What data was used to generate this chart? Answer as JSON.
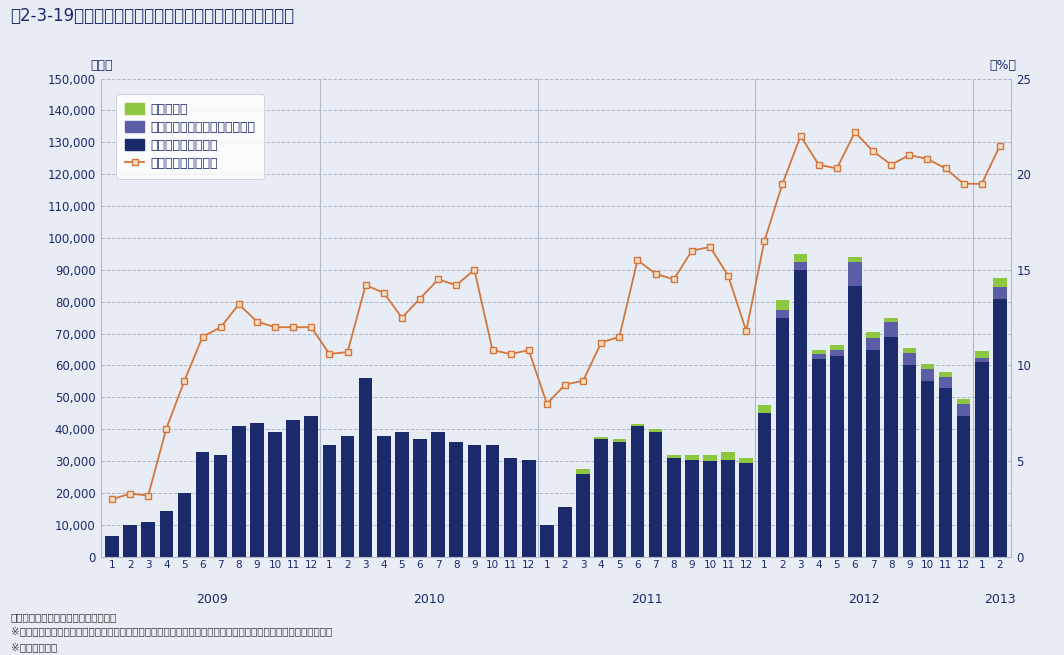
{
  "title": "図2-3-19　ハイブリッド自動車・電気自動車販売台数推移",
  "ylabel_left": "（台）",
  "ylabel_right": "（%）",
  "footnotes": [
    "※国産車のみ。",
    "※統計の制約上、プラグインハイブリッド自動車・ハイブリッド自動車・電気自動車の販売台数より割合を算出。",
    "資料：一般社団法人日本自動車工業会"
  ],
  "legend": [
    "電気自動車",
    "プラグインハイブリッド自動車",
    "ハイブリッド自動車",
    "次世代自動車の割合"
  ],
  "colors": {
    "ev": "#8DC63F",
    "phev": "#5B5EA6",
    "hv": "#1B2A6B",
    "line": "#D4763B",
    "background": "#E8ECF5",
    "grid": "#B0B8CC"
  },
  "year_labels": [
    "2009",
    "2010",
    "2011",
    "2012",
    "2013"
  ],
  "month_labels": [
    "1",
    "2",
    "3",
    "4",
    "5",
    "6",
    "7",
    "8",
    "9",
    "10",
    "11",
    "12",
    "1",
    "2",
    "3",
    "4",
    "5",
    "6",
    "7",
    "8",
    "9",
    "10",
    "11",
    "12",
    "1",
    "2",
    "3",
    "4",
    "5",
    "6",
    "7",
    "8",
    "9",
    "10",
    "11",
    "12",
    "1",
    "2",
    "3",
    "4",
    "5",
    "6",
    "7",
    "8",
    "9",
    "10",
    "11",
    "12",
    "1",
    "2"
  ],
  "hv": [
    6500,
    10000,
    11000,
    14500,
    20000,
    33000,
    32000,
    41000,
    42000,
    39000,
    43000,
    44000,
    35000,
    38000,
    56000,
    38000,
    39000,
    37000,
    39000,
    36000,
    35000,
    35000,
    31000,
    30500,
    10000,
    15500,
    26000,
    37000,
    36000,
    41000,
    39000,
    31000,
    30500,
    30000,
    30500,
    29500,
    45000,
    75000,
    90000,
    62000,
    63000,
    85000,
    65000,
    69000,
    60000,
    55000,
    53000,
    44000,
    61000,
    81000
  ],
  "phev": [
    0,
    0,
    0,
    0,
    0,
    0,
    0,
    0,
    0,
    0,
    0,
    0,
    0,
    0,
    0,
    0,
    0,
    0,
    0,
    0,
    0,
    0,
    0,
    0,
    0,
    0,
    0,
    0,
    0,
    0,
    0,
    0,
    0,
    0,
    0,
    0,
    0,
    2500,
    2500,
    1500,
    2000,
    7500,
    3500,
    4500,
    4000,
    4000,
    3500,
    4000,
    1500,
    3500
  ],
  "ev": [
    0,
    0,
    0,
    0,
    0,
    0,
    0,
    0,
    0,
    0,
    0,
    0,
    0,
    0,
    0,
    0,
    0,
    0,
    0,
    0,
    0,
    0,
    0,
    0,
    0,
    0,
    1500,
    500,
    1000,
    800,
    1200,
    1000,
    1500,
    2000,
    2500,
    1500,
    2500,
    3000,
    2500,
    1500,
    1500,
    1500,
    2000,
    1500,
    1500,
    1500,
    1500,
    1500,
    2000,
    3000
  ],
  "ratio": [
    3.0,
    3.3,
    3.2,
    6.7,
    9.2,
    11.5,
    12.0,
    13.2,
    12.3,
    12.0,
    12.0,
    12.0,
    10.6,
    10.7,
    14.2,
    13.8,
    12.5,
    13.5,
    14.5,
    14.2,
    15.0,
    10.8,
    10.6,
    10.8,
    8.0,
    9.0,
    9.2,
    11.2,
    11.5,
    15.5,
    14.8,
    14.5,
    16.0,
    16.2,
    14.7,
    11.8,
    16.5,
    19.5,
    22.0,
    20.5,
    20.3,
    22.2,
    21.2,
    20.5,
    21.0,
    20.8,
    20.3,
    19.5,
    19.5,
    21.5
  ],
  "ylim_left": [
    0,
    150000
  ],
  "ylim_right": [
    0,
    25
  ],
  "yticks_left": [
    0,
    10000,
    20000,
    30000,
    40000,
    50000,
    60000,
    70000,
    80000,
    90000,
    100000,
    110000,
    120000,
    130000,
    140000,
    150000
  ],
  "yticks_right": [
    0,
    5,
    10,
    15,
    20,
    25
  ]
}
